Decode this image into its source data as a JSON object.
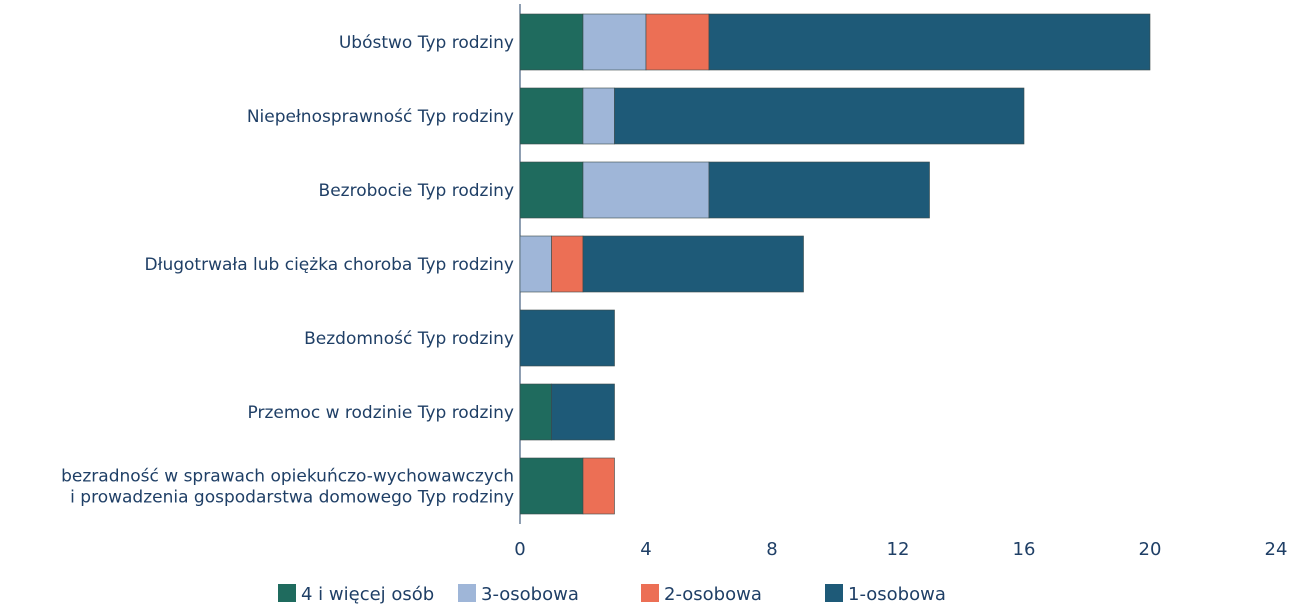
{
  "chart_data": {
    "type": "bar",
    "orientation": "horizontal",
    "stacked": true,
    "categories": [
      [
        "Ubóstwo Typ rodziny"
      ],
      [
        "Niepełnosprawność Typ rodziny"
      ],
      [
        "Bezrobocie Typ rodziny"
      ],
      [
        "Długotrwała lub ciężka choroba Typ rodziny"
      ],
      [
        "Bezdomność Typ rodziny"
      ],
      [
        "Przemoc w rodzinie Typ rodziny"
      ],
      [
        "bezradność w sprawach opiekuńczo-wychowawczych",
        "i prowadzenia gospodarstwa domowego Typ rodziny"
      ]
    ],
    "series": [
      {
        "name": "4  i więcej osób",
        "color": "#1f6b5e",
        "values": [
          2,
          2,
          2,
          0,
          0,
          1,
          2
        ]
      },
      {
        "name": "3-osobowa",
        "color": "#9fb6d8",
        "values": [
          2,
          1,
          4,
          1,
          0,
          0,
          0
        ]
      },
      {
        "name": "2-osobowa",
        "color": "#ec6f55",
        "values": [
          2,
          0,
          0,
          1,
          0,
          0,
          1
        ]
      },
      {
        "name": "1-osobowa",
        "color": "#1e5a78",
        "values": [
          14,
          13,
          7,
          7,
          3,
          2,
          0
        ]
      }
    ],
    "xlim": [
      0,
      24
    ],
    "xticks": [
      "0",
      "4",
      "8",
      "12",
      "16",
      "20",
      "24"
    ],
    "grid": false,
    "legend_position": "bottom"
  }
}
